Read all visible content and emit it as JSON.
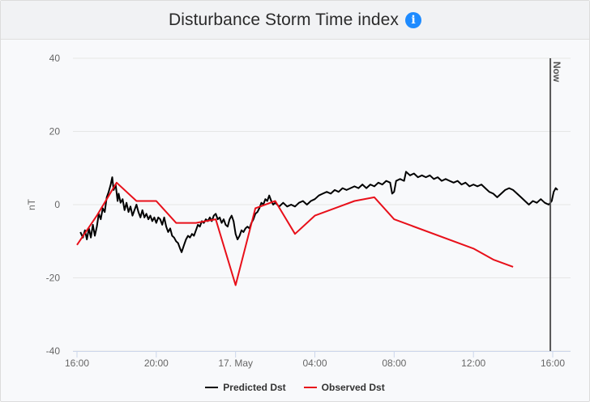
{
  "header": {
    "title": "Disturbance Storm Time index",
    "info_icon": "info-icon"
  },
  "colors": {
    "predicted": "#000000",
    "observed": "#e8101a",
    "now_line": "#555555",
    "info": "#1e8bff"
  },
  "chart_data": {
    "type": "line",
    "title": "Disturbance Storm Time index",
    "ylabel": "nT",
    "xlabel": "",
    "ylim": [
      -40,
      40
    ],
    "yticks": [
      40,
      20,
      0,
      -20,
      -40
    ],
    "xlim": [
      15.85,
      40.25
    ],
    "xticks": [
      {
        "x": 16,
        "label": "16:00"
      },
      {
        "x": 20,
        "label": "20:00"
      },
      {
        "x": 24,
        "label": "17. May"
      },
      {
        "x": 28,
        "label": "04:00"
      },
      {
        "x": 32,
        "label": "08:00"
      },
      {
        "x": 36,
        "label": "12:00"
      },
      {
        "x": 40,
        "label": "16:00"
      }
    ],
    "grid": true,
    "legend": "bottom-center",
    "now_marker": {
      "x": 39.88,
      "label": "Now"
    },
    "series": [
      {
        "name": "Predicted Dst",
        "color": "#000000",
        "points": [
          [
            16.17,
            -7.5
          ],
          [
            16.3,
            -9.0
          ],
          [
            16.4,
            -7.0
          ],
          [
            16.5,
            -9.5
          ],
          [
            16.6,
            -6.5
          ],
          [
            16.7,
            -9.0
          ],
          [
            16.8,
            -5.5
          ],
          [
            16.9,
            -8.5
          ],
          [
            17.0,
            -6.0
          ],
          [
            17.1,
            -2.5
          ],
          [
            17.2,
            -4.0
          ],
          [
            17.3,
            -1.0
          ],
          [
            17.4,
            -2.0
          ],
          [
            17.5,
            2.0
          ],
          [
            17.6,
            3.5
          ],
          [
            17.7,
            5.5
          ],
          [
            17.78,
            7.5
          ],
          [
            17.85,
            4.0
          ],
          [
            17.95,
            5.5
          ],
          [
            18.05,
            1.0
          ],
          [
            18.1,
            3.0
          ],
          [
            18.2,
            0.5
          ],
          [
            18.3,
            1.5
          ],
          [
            18.4,
            -1.5
          ],
          [
            18.5,
            0.5
          ],
          [
            18.6,
            -2.0
          ],
          [
            18.7,
            -0.5
          ],
          [
            18.8,
            -3.0
          ],
          [
            18.9,
            -1.5
          ],
          [
            19.0,
            0.0
          ],
          [
            19.1,
            -2.0
          ],
          [
            19.2,
            -3.5
          ],
          [
            19.3,
            -1.5
          ],
          [
            19.4,
            -3.5
          ],
          [
            19.5,
            -2.5
          ],
          [
            19.6,
            -4.0
          ],
          [
            19.7,
            -3.0
          ],
          [
            19.8,
            -4.5
          ],
          [
            19.9,
            -3.5
          ],
          [
            20.0,
            -5.0
          ],
          [
            20.1,
            -3.5
          ],
          [
            20.2,
            -4.0
          ],
          [
            20.3,
            -5.5
          ],
          [
            20.4,
            -3.5
          ],
          [
            20.5,
            -6.0
          ],
          [
            20.6,
            -7.5
          ],
          [
            20.7,
            -6.5
          ],
          [
            20.8,
            -8.5
          ],
          [
            20.9,
            -9.0
          ],
          [
            21.0,
            -10.0
          ],
          [
            21.1,
            -10.5
          ],
          [
            21.2,
            -12.0
          ],
          [
            21.28,
            -13.0
          ],
          [
            21.4,
            -11.0
          ],
          [
            21.5,
            -9.5
          ],
          [
            21.6,
            -8.5
          ],
          [
            21.7,
            -9.0
          ],
          [
            21.8,
            -8.0
          ],
          [
            21.9,
            -8.5
          ],
          [
            22.0,
            -7.0
          ],
          [
            22.1,
            -5.5
          ],
          [
            22.2,
            -6.0
          ],
          [
            22.3,
            -4.5
          ],
          [
            22.4,
            -5.0
          ],
          [
            22.5,
            -4.0
          ],
          [
            22.6,
            -4.5
          ],
          [
            22.7,
            -3.5
          ],
          [
            22.8,
            -4.5
          ],
          [
            22.9,
            -3.0
          ],
          [
            23.0,
            -2.5
          ],
          [
            23.1,
            -4.0
          ],
          [
            23.2,
            -3.5
          ],
          [
            23.3,
            -5.0
          ],
          [
            23.4,
            -4.0
          ],
          [
            23.5,
            -5.5
          ],
          [
            23.6,
            -6.0
          ],
          [
            23.7,
            -4.0
          ],
          [
            23.8,
            -3.0
          ],
          [
            23.9,
            -4.5
          ],
          [
            24.0,
            -8.0
          ],
          [
            24.1,
            -9.5
          ],
          [
            24.2,
            -8.5
          ],
          [
            24.3,
            -7.0
          ],
          [
            24.4,
            -7.5
          ],
          [
            24.5,
            -6.5
          ],
          [
            24.6,
            -6.0
          ],
          [
            24.7,
            -6.5
          ],
          [
            24.8,
            -5.0
          ],
          [
            24.9,
            -4.0
          ],
          [
            25.0,
            -2.5
          ],
          [
            25.1,
            -2.0
          ],
          [
            25.2,
            -1.0
          ],
          [
            25.3,
            0.5
          ],
          [
            25.4,
            0.0
          ],
          [
            25.5,
            1.5
          ],
          [
            25.6,
            1.0
          ],
          [
            25.7,
            2.5
          ],
          [
            25.8,
            1.0
          ],
          [
            25.9,
            0.0
          ],
          [
            26.0,
            0.5
          ],
          [
            26.2,
            -0.5
          ],
          [
            26.4,
            0.5
          ],
          [
            26.6,
            -0.5
          ],
          [
            26.8,
            0.0
          ],
          [
            27.0,
            -0.5
          ],
          [
            27.2,
            0.5
          ],
          [
            27.4,
            1.0
          ],
          [
            27.6,
            0.0
          ],
          [
            27.8,
            1.0
          ],
          [
            28.0,
            1.5
          ],
          [
            28.2,
            2.5
          ],
          [
            28.4,
            3.0
          ],
          [
            28.6,
            3.5
          ],
          [
            28.8,
            3.0
          ],
          [
            29.0,
            4.0
          ],
          [
            29.2,
            3.5
          ],
          [
            29.4,
            4.5
          ],
          [
            29.6,
            4.0
          ],
          [
            29.8,
            4.5
          ],
          [
            30.0,
            5.0
          ],
          [
            30.2,
            4.5
          ],
          [
            30.4,
            5.5
          ],
          [
            30.6,
            4.5
          ],
          [
            30.8,
            5.5
          ],
          [
            31.0,
            5.0
          ],
          [
            31.2,
            6.0
          ],
          [
            31.4,
            5.5
          ],
          [
            31.6,
            6.5
          ],
          [
            31.8,
            6.0
          ],
          [
            31.9,
            3.0
          ],
          [
            32.0,
            3.5
          ],
          [
            32.1,
            6.5
          ],
          [
            32.3,
            7.0
          ],
          [
            32.5,
            6.5
          ],
          [
            32.6,
            9.0
          ],
          [
            32.8,
            8.0
          ],
          [
            33.0,
            8.5
          ],
          [
            33.2,
            7.5
          ],
          [
            33.4,
            8.0
          ],
          [
            33.6,
            7.5
          ],
          [
            33.8,
            8.0
          ],
          [
            34.0,
            7.0
          ],
          [
            34.2,
            7.5
          ],
          [
            34.4,
            6.5
          ],
          [
            34.6,
            7.0
          ],
          [
            34.8,
            6.5
          ],
          [
            35.0,
            6.0
          ],
          [
            35.2,
            6.5
          ],
          [
            35.4,
            5.5
          ],
          [
            35.6,
            6.0
          ],
          [
            35.8,
            5.0
          ],
          [
            36.0,
            5.5
          ],
          [
            36.2,
            5.0
          ],
          [
            36.4,
            5.5
          ],
          [
            36.6,
            4.5
          ],
          [
            36.8,
            3.5
          ],
          [
            37.0,
            3.0
          ],
          [
            37.2,
            2.0
          ],
          [
            37.4,
            3.0
          ],
          [
            37.6,
            4.0
          ],
          [
            37.8,
            4.5
          ],
          [
            38.0,
            4.0
          ],
          [
            38.2,
            3.0
          ],
          [
            38.4,
            2.0
          ],
          [
            38.6,
            1.0
          ],
          [
            38.8,
            0.0
          ],
          [
            39.0,
            1.0
          ],
          [
            39.2,
            0.5
          ],
          [
            39.4,
            1.5
          ],
          [
            39.6,
            0.5
          ],
          [
            39.8,
            0.0
          ],
          [
            39.95,
            1.0
          ],
          [
            40.05,
            3.5
          ],
          [
            40.15,
            4.5
          ],
          [
            40.25,
            4.0
          ]
        ]
      },
      {
        "name": "Observed Dst",
        "color": "#e8101a",
        "points": [
          [
            16.0,
            -11
          ],
          [
            17.0,
            -3
          ],
          [
            18.0,
            6
          ],
          [
            19.0,
            1
          ],
          [
            20.0,
            1
          ],
          [
            21.0,
            -5
          ],
          [
            22.0,
            -5
          ],
          [
            23.0,
            -4
          ],
          [
            24.0,
            -22
          ],
          [
            25.0,
            -1
          ],
          [
            26.0,
            1
          ],
          [
            27.0,
            -8
          ],
          [
            28.0,
            -3
          ],
          [
            30.0,
            1
          ],
          [
            31.0,
            2
          ],
          [
            32.0,
            -4
          ],
          [
            36.0,
            -12
          ],
          [
            37.0,
            -15
          ],
          [
            38.0,
            -17
          ]
        ]
      }
    ]
  }
}
